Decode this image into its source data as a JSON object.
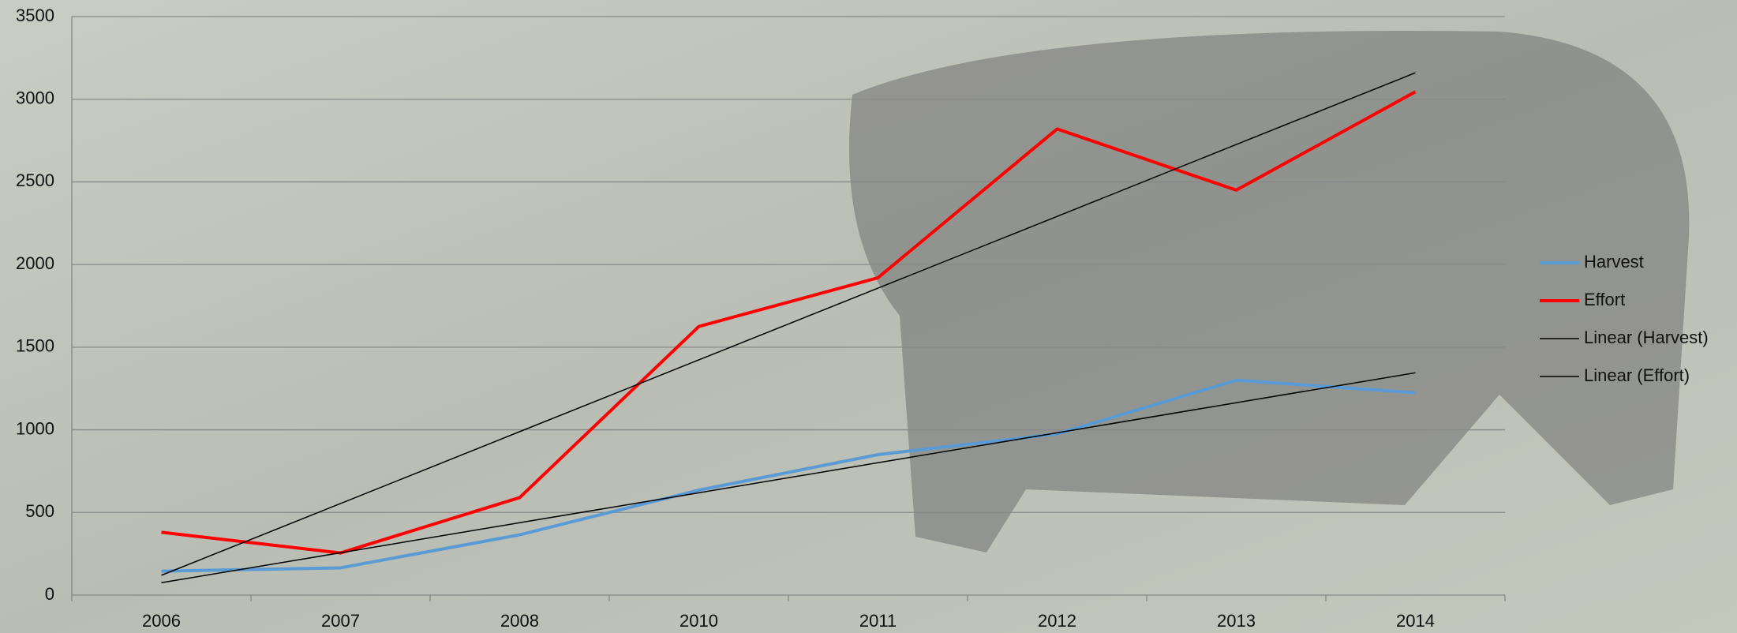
{
  "chart_data": {
    "type": "line",
    "categories": [
      "2006",
      "2007",
      "2008",
      "2010",
      "2011",
      "2012",
      "2013",
      "2014"
    ],
    "series": [
      {
        "name": "Harvest",
        "color": "#5b9bd5",
        "width": 4,
        "values": [
          145,
          165,
          365,
          635,
          850,
          975,
          1300,
          1225
        ]
      },
      {
        "name": "Effort",
        "color": "#ff0000",
        "width": 4,
        "values": [
          380,
          255,
          590,
          1625,
          1920,
          2820,
          2450,
          3045
        ]
      },
      {
        "name": "Linear (Harvest)",
        "color": "#000000",
        "width": 1.5,
        "values": [
          75,
          256,
          438,
          619,
          801,
          982,
          1164,
          1345
        ]
      },
      {
        "name": "Linear (Effort)",
        "color": "#000000",
        "width": 1.5,
        "values": [
          120,
          554,
          989,
          1423,
          1857,
          2291,
          2726,
          3160
        ]
      }
    ],
    "ylim": [
      0,
      3500
    ],
    "yticks": [
      0,
      500,
      1000,
      1500,
      2000,
      2500,
      3000,
      3500
    ],
    "grid": true,
    "legend": "right"
  }
}
